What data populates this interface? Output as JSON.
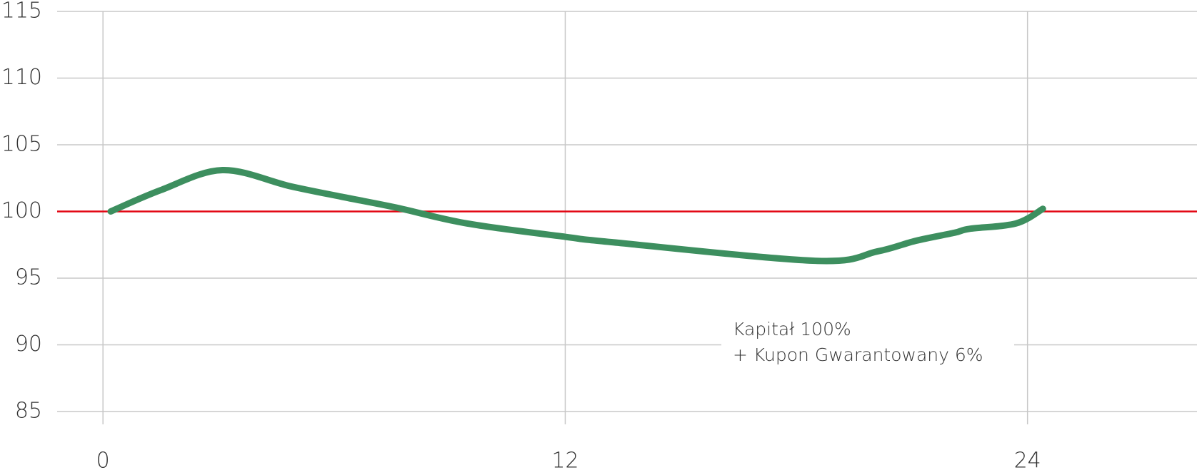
{
  "chart_data": {
    "type": "line",
    "x": [
      0.2,
      1.5,
      3.1,
      4.85,
      6.2,
      7.6,
      9.45,
      12,
      13.2,
      18.5,
      20.1,
      21.1,
      22.1,
      22.5,
      23.7,
      24.4
    ],
    "series": [
      {
        "color": "#3d8f5f",
        "values": [
          100.0,
          101.6,
          103.1,
          101.9,
          101.1,
          100.3,
          99.1,
          98.1,
          97.7,
          96.3,
          97.0,
          97.8,
          98.4,
          98.7,
          99.1,
          100.2
        ]
      }
    ],
    "reference_line": {
      "value": 100,
      "color": "#e30613"
    },
    "annotation": [
      "Kapitał 100%",
      "+ Kupon Gwarantowany 6%"
    ],
    "xlim": [
      -1.19,
      28.4
    ],
    "xticks": [
      0,
      12,
      24
    ],
    "ylim": [
      85,
      115
    ],
    "yticks": [
      85,
      90,
      95,
      100,
      105,
      110,
      115
    ],
    "grid": true
  }
}
